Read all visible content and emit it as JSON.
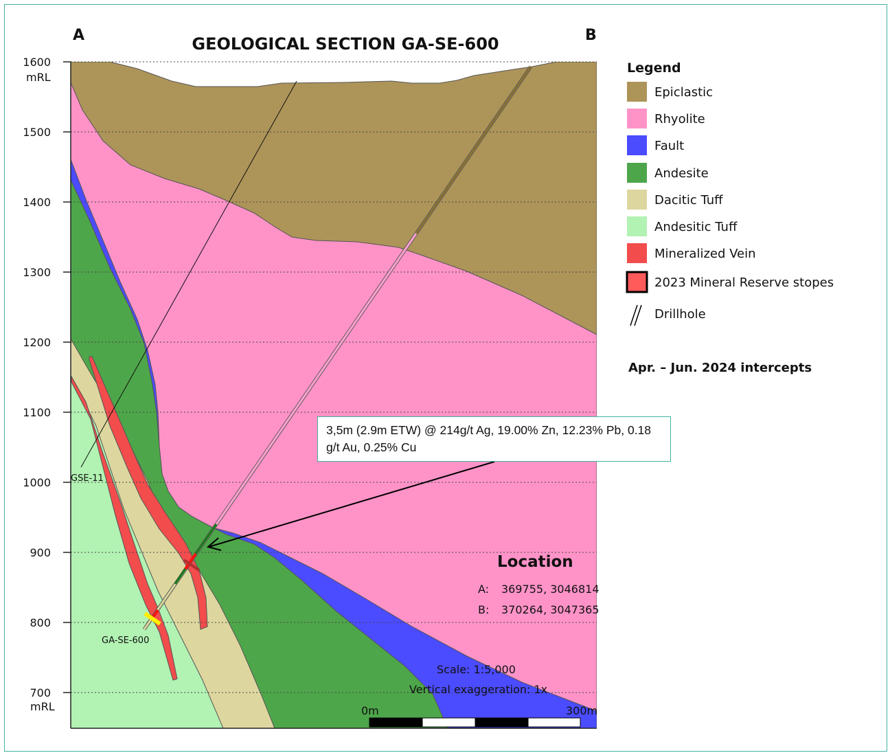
{
  "title": "GEOLOGICAL SECTION GA-SE-600",
  "section_ends": {
    "left": "A",
    "right": "B"
  },
  "axis": {
    "ticks": [
      "1600",
      "1500",
      "1400",
      "1300",
      "1200",
      "1100",
      "1000",
      "900",
      "800",
      "700"
    ],
    "unit_top": "mRL",
    "unit_bottom": "mRL"
  },
  "legend": {
    "title": "Legend",
    "items": [
      {
        "label": "Epiclastic",
        "color": "#ad9459"
      },
      {
        "label": "Rhyolite",
        "color": "#ff93c8"
      },
      {
        "label": "Fault",
        "color": "#4b4bff"
      },
      {
        "label": "Andesite",
        "color": "#4ea64a"
      },
      {
        "label": "Dacitic Tuff",
        "color": "#ddd79f"
      },
      {
        "label": "Andesitic Tuff",
        "color": "#b2f2b3"
      },
      {
        "label": "Mineralized Vein",
        "color": "#f24c4c"
      },
      {
        "label": "2023 Mineral Reserve stopes",
        "color": "#ff5b5b"
      },
      {
        "label": "Drillhole",
        "icon": "drillhole-icon"
      }
    ],
    "note": "Apr. – Jun. 2024 intercepts"
  },
  "drillholes": [
    "GSE-11",
    "GA-SE-600"
  ],
  "callout": "3,5m (2.9m ETW) @ 214g/t Ag, 19.00% Zn, 12.23% Pb, 0.18 g/t Au, 0.25% Cu",
  "location": {
    "title": "Location",
    "a_label": "A:",
    "a_coords": "369755, 3046814",
    "b_label": "B:",
    "b_coords": "370264, 3047365"
  },
  "scale": {
    "text": "Scale: 1:5,000",
    "vertical_exaggeration": "Vertical exaggeration: 1x",
    "start": "0m",
    "end": "300m"
  }
}
